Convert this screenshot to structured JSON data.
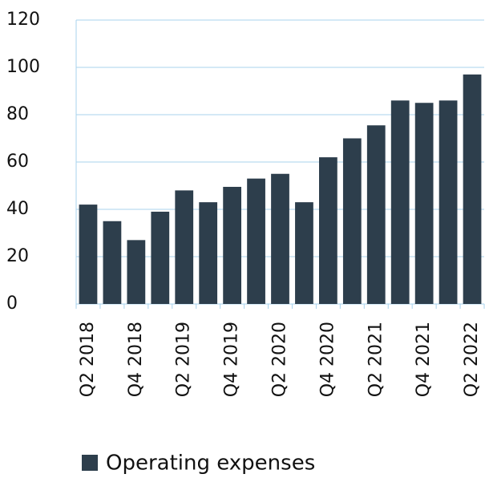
{
  "chart_data": {
    "type": "bar",
    "categories": [
      "Q2 2018",
      null,
      "Q4 2018",
      null,
      "Q2 2019",
      null,
      "Q4 2019",
      null,
      "Q2 2020",
      null,
      "Q4 2020",
      null,
      "Q2 2021",
      null,
      "Q4 2021",
      null,
      "Q2 2022"
    ],
    "series": [
      {
        "name": "Operating expenses",
        "color": "#2d3e4c",
        "values": [
          42,
          35,
          27,
          39,
          48,
          43,
          49.5,
          53,
          55,
          43,
          62,
          70,
          75.5,
          86,
          85,
          86,
          97
        ]
      }
    ],
    "ylim": [
      0,
      120
    ],
    "yticks": [
      0,
      20,
      40,
      60,
      80,
      100,
      120
    ],
    "grid": true,
    "legend": "bottom"
  }
}
